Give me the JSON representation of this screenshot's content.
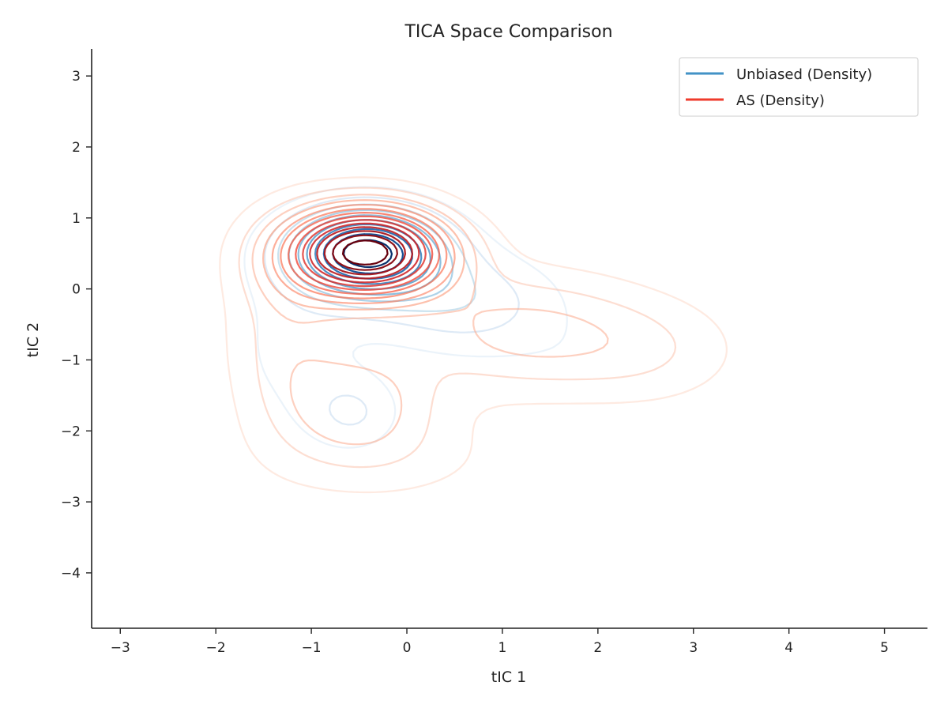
{
  "chart_data": {
    "type": "contour",
    "title": "TICA Space Comparison",
    "xlabel": "tIC 1",
    "ylabel": "tIC 2",
    "xlim": [
      -3.3,
      5.45
    ],
    "ylim": [
      -4.78,
      3.38
    ],
    "x_ticks": [
      -3,
      -2,
      -1,
      0,
      1,
      2,
      3,
      4,
      5
    ],
    "y_ticks": [
      -4,
      -3,
      -2,
      -1,
      0,
      1,
      2,
      3
    ],
    "x_tick_labels": [
      "−3",
      "−2",
      "−1",
      "0",
      "1",
      "2",
      "3",
      "4",
      "5"
    ],
    "y_tick_labels": [
      "−4",
      "−3",
      "−2",
      "−1",
      "0",
      "1",
      "2",
      "3"
    ],
    "grid": false,
    "legend_position": "top-right",
    "series": [
      {
        "name": "Unbiased (Density)",
        "legend_color": "#4292c6",
        "colormap": "Blues",
        "levels": 10,
        "peaks": [
          {
            "x": -0.42,
            "y": 0.52,
            "sx": 0.55,
            "sy": 0.42,
            "w": 1.0
          },
          {
            "x": -0.55,
            "y": -1.75,
            "sx": 0.35,
            "sy": 0.38,
            "w": 0.18
          },
          {
            "x": 0.6,
            "y": -0.2,
            "sx": 0.7,
            "sy": 0.5,
            "w": 0.25
          },
          {
            "x": 2.3,
            "y": -1.2,
            "sx": 0.85,
            "sy": 0.55,
            "w": 0.09
          },
          {
            "x": -1.2,
            "y": -0.8,
            "sx": 0.5,
            "sy": 0.9,
            "w": 0.12
          }
        ]
      },
      {
        "name": "AS (Density)",
        "legend_color": "#ef3b2c",
        "colormap": "Reds",
        "levels": 14,
        "peaks": [
          {
            "x": -0.42,
            "y": 0.52,
            "sx": 0.6,
            "sy": 0.45,
            "w": 1.0
          },
          {
            "x": -0.5,
            "y": -1.6,
            "sx": 0.55,
            "sy": 0.55,
            "w": 0.22
          },
          {
            "x": -1.3,
            "y": -0.6,
            "sx": 0.45,
            "sy": 1.0,
            "w": 0.15
          },
          {
            "x": 1.2,
            "y": -0.6,
            "sx": 0.9,
            "sy": 0.6,
            "w": 0.22
          },
          {
            "x": 2.6,
            "y": -0.9,
            "sx": 0.7,
            "sy": 0.55,
            "w": 0.1
          },
          {
            "x": -0.2,
            "y": -2.4,
            "sx": 1.0,
            "sy": 0.5,
            "w": 0.08
          }
        ]
      }
    ]
  }
}
